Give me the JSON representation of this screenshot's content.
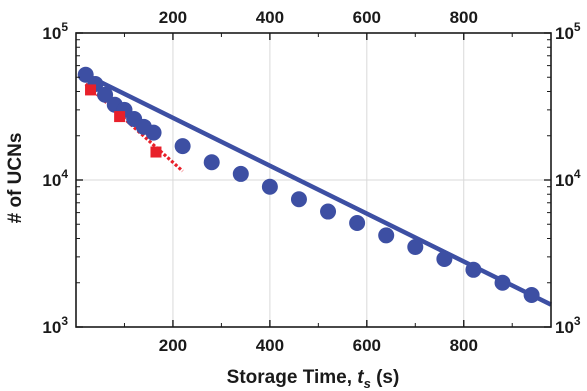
{
  "chart_data": {
    "type": "scatter",
    "xlabel": {
      "prefix": "Storage Time, ",
      "var": "t",
      "sub": "s",
      "suffix": " (s)"
    },
    "ylabel": "# of UCNs",
    "x_range": [
      0,
      980
    ],
    "y_range": [
      1000,
      100000
    ],
    "y_scale": "log",
    "grid": true,
    "x_ticks": [
      200,
      400,
      600,
      800
    ],
    "x_tick_labels": [
      "200",
      "400",
      "600",
      "800"
    ],
    "y_ticks": [
      1000,
      10000,
      100000
    ],
    "y_tick_labels": [
      {
        "base": "10",
        "exp": "3"
      },
      {
        "base": "10",
        "exp": "4"
      },
      {
        "base": "10",
        "exp": "5"
      }
    ],
    "series": [
      {
        "marker": "circle",
        "color": "#3d4fa3",
        "x": [
          20,
          40,
          60,
          80,
          100,
          120,
          140,
          160,
          220,
          280,
          340,
          400,
          460,
          520,
          580,
          640,
          700,
          760,
          820,
          880,
          940
        ],
        "y": [
          52000,
          45000,
          38000,
          32500,
          30000,
          26000,
          23000,
          21000,
          17000,
          13200,
          11000,
          9000,
          7400,
          6100,
          5100,
          4200,
          3500,
          2900,
          2450,
          2000,
          1650
        ],
        "fit": {
          "x": [
            20,
            980
          ],
          "y": [
            52000,
            1420
          ],
          "style": "solid"
        }
      },
      {
        "marker": "square",
        "color": "#e8202a",
        "x": [
          30,
          90,
          165
        ],
        "y": [
          41000,
          27000,
          15500
        ],
        "fit": {
          "x": [
            20,
            220
          ],
          "y": [
            45000,
            11500
          ],
          "style": "dotted"
        }
      }
    ]
  }
}
